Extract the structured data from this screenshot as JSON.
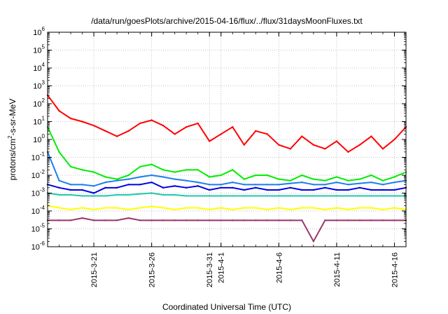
{
  "chart_data": {
    "type": "line",
    "title": "/data/run/goesPlots/archive/2015-04-16/flux/../flux/31daysMoonFluxes.txt",
    "xlabel": "Coordinated Universal Time (UTC)",
    "ylabel": "protons/cm²-s-sr-MeV",
    "ylabel_parts": {
      "before": "protons/cm",
      "sup": "2",
      "after": "-s-sr-MeV"
    },
    "yscale": "log",
    "ylim": [
      1e-06,
      1000000.0
    ],
    "y_ticks": [
      {
        "mant": "10",
        "exp": "-6"
      },
      {
        "mant": "10",
        "exp": "-5"
      },
      {
        "mant": "10",
        "exp": "-4"
      },
      {
        "mant": "10",
        "exp": "-3"
      },
      {
        "mant": "10",
        "exp": "-2"
      },
      {
        "mant": "10",
        "exp": "-1"
      },
      {
        "mant": "10",
        "exp": "0"
      },
      {
        "mant": "10",
        "exp": "1"
      },
      {
        "mant": "10",
        "exp": "2"
      },
      {
        "mant": "10",
        "exp": "3"
      },
      {
        "mant": "10",
        "exp": "4"
      },
      {
        "mant": "10",
        "exp": "5"
      },
      {
        "mant": "10",
        "exp": "6"
      }
    ],
    "xlim": [
      "2015-03-17",
      "2015-04-17"
    ],
    "x_ticks": [
      {
        "date": "2015-03-21",
        "label": "2015-3-21"
      },
      {
        "date": "2015-03-26",
        "label": "2015-3-26"
      },
      {
        "date": "2015-03-31",
        "label": "2015-3-31"
      },
      {
        "date": "2015-04-01",
        "label": "2015-4-1"
      },
      {
        "date": "2015-04-06",
        "label": "2015-4-6"
      },
      {
        "date": "2015-04-11",
        "label": "2015-4-11"
      },
      {
        "date": "2015-04-16",
        "label": "2015-4-16"
      }
    ],
    "grid": true,
    "series": [
      {
        "color": "#ff0000",
        "x": [
          "2015-03-17",
          "2015-03-18",
          "2015-03-19",
          "2015-03-20",
          "2015-03-21",
          "2015-03-22",
          "2015-03-23",
          "2015-03-24",
          "2015-03-25",
          "2015-03-26",
          "2015-03-27",
          "2015-03-28",
          "2015-03-29",
          "2015-03-30",
          "2015-03-31",
          "2015-04-01",
          "2015-04-02",
          "2015-04-03",
          "2015-04-04",
          "2015-04-05",
          "2015-04-06",
          "2015-04-07",
          "2015-04-08",
          "2015-04-09",
          "2015-04-10",
          "2015-04-11",
          "2015-04-12",
          "2015-04-13",
          "2015-04-14",
          "2015-04-15",
          "2015-04-16",
          "2015-04-17"
        ],
        "values": [
          300,
          40,
          15,
          10,
          6,
          3,
          1.5,
          3,
          8,
          12,
          6,
          2,
          5,
          8,
          0.8,
          2,
          5,
          0.5,
          3,
          2,
          0.5,
          0.3,
          1.5,
          0.5,
          0.3,
          0.8,
          0.2,
          0.5,
          1.5,
          0.3,
          1,
          5
        ]
      },
      {
        "color": "#00ee00",
        "x": [
          "2015-03-17",
          "2015-03-18",
          "2015-03-19",
          "2015-03-20",
          "2015-03-21",
          "2015-03-22",
          "2015-03-23",
          "2015-03-24",
          "2015-03-25",
          "2015-03-26",
          "2015-03-27",
          "2015-03-28",
          "2015-03-29",
          "2015-03-30",
          "2015-03-31",
          "2015-04-01",
          "2015-04-02",
          "2015-04-03",
          "2015-04-04",
          "2015-04-05",
          "2015-04-06",
          "2015-04-07",
          "2015-04-08",
          "2015-04-09",
          "2015-04-10",
          "2015-04-11",
          "2015-04-12",
          "2015-04-13",
          "2015-04-14",
          "2015-04-15",
          "2015-04-16",
          "2015-04-17"
        ],
        "values": [
          5,
          0.2,
          0.03,
          0.02,
          0.015,
          0.008,
          0.006,
          0.01,
          0.03,
          0.04,
          0.02,
          0.015,
          0.02,
          0.02,
          0.008,
          0.01,
          0.02,
          0.006,
          0.01,
          0.01,
          0.006,
          0.005,
          0.01,
          0.006,
          0.005,
          0.008,
          0.005,
          0.006,
          0.01,
          0.005,
          0.008,
          0.015
        ]
      },
      {
        "color": "#1c7ef0",
        "x": [
          "2015-03-17",
          "2015-03-18",
          "2015-03-19",
          "2015-03-20",
          "2015-03-21",
          "2015-03-22",
          "2015-03-23",
          "2015-03-24",
          "2015-03-25",
          "2015-03-26",
          "2015-03-27",
          "2015-03-28",
          "2015-03-29",
          "2015-03-30",
          "2015-03-31",
          "2015-04-01",
          "2015-04-02",
          "2015-04-03",
          "2015-04-04",
          "2015-04-05",
          "2015-04-06",
          "2015-04-07",
          "2015-04-08",
          "2015-04-09",
          "2015-04-10",
          "2015-04-11",
          "2015-04-12",
          "2015-04-13",
          "2015-04-14",
          "2015-04-15",
          "2015-04-16",
          "2015-04-17"
        ],
        "values": [
          0.2,
          0.005,
          0.003,
          0.003,
          0.0025,
          0.004,
          0.005,
          0.006,
          0.008,
          0.01,
          0.008,
          0.006,
          0.005,
          0.004,
          0.003,
          0.003,
          0.004,
          0.003,
          0.003,
          0.003,
          0.003,
          0.0035,
          0.004,
          0.003,
          0.003,
          0.004,
          0.003,
          0.0035,
          0.004,
          0.003,
          0.004,
          0.005
        ]
      },
      {
        "color": "#0000e6",
        "x": [
          "2015-03-17",
          "2015-03-18",
          "2015-03-19",
          "2015-03-20",
          "2015-03-21",
          "2015-03-22",
          "2015-03-23",
          "2015-03-24",
          "2015-03-25",
          "2015-03-26",
          "2015-03-27",
          "2015-03-28",
          "2015-03-29",
          "2015-03-30",
          "2015-03-31",
          "2015-04-01",
          "2015-04-02",
          "2015-04-03",
          "2015-04-04",
          "2015-04-05",
          "2015-04-06",
          "2015-04-07",
          "2015-04-08",
          "2015-04-09",
          "2015-04-10",
          "2015-04-11",
          "2015-04-12",
          "2015-04-13",
          "2015-04-14",
          "2015-04-15",
          "2015-04-16",
          "2015-04-17"
        ],
        "values": [
          0.003,
          0.002,
          0.0015,
          0.0015,
          0.001,
          0.002,
          0.002,
          0.003,
          0.003,
          0.004,
          0.002,
          0.0025,
          0.002,
          0.0025,
          0.0015,
          0.002,
          0.002,
          0.0015,
          0.002,
          0.0015,
          0.0015,
          0.002,
          0.0015,
          0.0015,
          0.002,
          0.0015,
          0.0015,
          0.002,
          0.0015,
          0.0015,
          0.0015,
          0.002
        ]
      },
      {
        "color": "#22c7a9",
        "x": [
          "2015-03-17",
          "2015-03-18",
          "2015-03-19",
          "2015-03-20",
          "2015-03-21",
          "2015-03-22",
          "2015-03-23",
          "2015-03-24",
          "2015-03-25",
          "2015-03-26",
          "2015-03-27",
          "2015-03-28",
          "2015-03-29",
          "2015-03-30",
          "2015-03-31",
          "2015-04-01",
          "2015-04-02",
          "2015-04-03",
          "2015-04-04",
          "2015-04-05",
          "2015-04-06",
          "2015-04-07",
          "2015-04-08",
          "2015-04-09",
          "2015-04-10",
          "2015-04-11",
          "2015-04-12",
          "2015-04-13",
          "2015-04-14",
          "2015-04-15",
          "2015-04-16",
          "2015-04-17"
        ],
        "values": [
          0.001,
          0.0008,
          0.0008,
          0.0007,
          0.0007,
          0.0007,
          0.0008,
          0.0008,
          0.0009,
          0.001,
          0.0008,
          0.0008,
          0.0007,
          0.0007,
          0.0007,
          0.0007,
          0.0007,
          0.0007,
          0.0007,
          0.0007,
          0.0007,
          0.0007,
          0.0007,
          0.0007,
          0.0007,
          0.0007,
          0.0007,
          0.0007,
          0.0007,
          0.0007,
          0.0007,
          0.0007
        ]
      },
      {
        "color": "#ffff00",
        "x": [
          "2015-03-17",
          "2015-03-18",
          "2015-03-19",
          "2015-03-20",
          "2015-03-21",
          "2015-03-22",
          "2015-03-23",
          "2015-03-24",
          "2015-03-25",
          "2015-03-26",
          "2015-03-27",
          "2015-03-28",
          "2015-03-29",
          "2015-03-30",
          "2015-03-31",
          "2015-04-01",
          "2015-04-02",
          "2015-04-03",
          "2015-04-04",
          "2015-04-05",
          "2015-04-06",
          "2015-04-07",
          "2015-04-08",
          "2015-04-09",
          "2015-04-10",
          "2015-04-11",
          "2015-04-12",
          "2015-04-13",
          "2015-04-14",
          "2015-04-15",
          "2015-04-16",
          "2015-04-17"
        ],
        "values": [
          0.0002,
          0.00015,
          0.00012,
          0.00015,
          0.00012,
          0.00015,
          0.00015,
          0.00012,
          0.00015,
          0.00018,
          0.00015,
          0.00012,
          0.00015,
          0.00015,
          0.00012,
          0.00015,
          0.00012,
          0.00015,
          0.00015,
          0.00012,
          0.00015,
          0.00012,
          0.00015,
          0.00015,
          0.00012,
          0.00015,
          0.00012,
          0.00015,
          0.00015,
          0.00012,
          0.00015,
          0.00012
        ]
      },
      {
        "color": "#993366",
        "x": [
          "2015-03-17",
          "2015-03-18",
          "2015-03-19",
          "2015-03-20",
          "2015-03-21",
          "2015-03-22",
          "2015-03-23",
          "2015-03-24",
          "2015-03-25",
          "2015-03-26",
          "2015-03-27",
          "2015-03-28",
          "2015-03-29",
          "2015-03-30",
          "2015-03-31",
          "2015-04-01",
          "2015-04-02",
          "2015-04-03",
          "2015-04-04",
          "2015-04-05",
          "2015-04-06",
          "2015-04-07",
          "2015-04-08",
          "2015-04-09",
          "2015-04-10",
          "2015-04-11",
          "2015-04-12",
          "2015-04-13",
          "2015-04-14",
          "2015-04-15",
          "2015-04-16",
          "2015-04-17"
        ],
        "values": [
          3e-05,
          3e-05,
          3e-05,
          4e-05,
          3e-05,
          3e-05,
          3e-05,
          4e-05,
          3e-05,
          3e-05,
          3e-05,
          3e-05,
          3e-05,
          3e-05,
          3e-05,
          3e-05,
          3e-05,
          3e-05,
          3e-05,
          3e-05,
          3e-05,
          3e-05,
          3e-05,
          2e-06,
          3e-05,
          3e-05,
          3e-05,
          3e-05,
          3e-05,
          3e-05,
          3e-05,
          3e-05
        ]
      }
    ]
  }
}
